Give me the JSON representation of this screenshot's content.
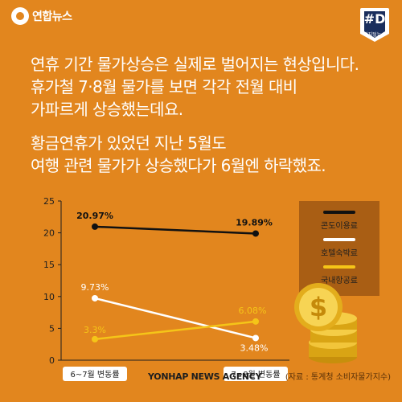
{
  "header": {
    "brand": "연합뉴스",
    "badge_title": "#D",
    "badge_sub": "디지털뉴스"
  },
  "intro": {
    "lines": [
      "연휴 기간 물가상승은 실제로 벌어지는 현상입니다.",
      "휴가철 7·8월 물가를 보면 각각 전월 대비",
      "가파르게 상승했는데요."
    ]
  },
  "detail": {
    "lines": [
      "황금연휴가 있었던 지난 5월도",
      "여행 관련 물가가 상승했다가 6월엔 하락했죠."
    ]
  },
  "colors": {
    "background": "#e2861e",
    "series_black": "#111111",
    "series_white": "#ffffff",
    "series_yellow": "#f5c518",
    "legend_box": "#a95e14"
  },
  "chart_data": {
    "type": "line",
    "categories": [
      "6~7월 변동률",
      "7~8월 변동률"
    ],
    "series": [
      {
        "name": "콘도이용료",
        "values": [
          20.97,
          19.89
        ],
        "labels": [
          "20.97%",
          "19.89%"
        ],
        "color": "#111111"
      },
      {
        "name": "호텔숙박료",
        "values": [
          9.73,
          3.48
        ],
        "labels": [
          "9.73%",
          "3.48%"
        ],
        "color": "#ffffff"
      },
      {
        "name": "국내항공료",
        "values": [
          3.3,
          6.08
        ],
        "labels": [
          "3.3%",
          "6.08%"
        ],
        "color": "#f5c518"
      }
    ],
    "ylim": [
      0,
      25
    ],
    "yticks": [
      0,
      5,
      10,
      15,
      20,
      25
    ],
    "xlabel": "",
    "ylabel": "",
    "legend_position": "right"
  },
  "footer": {
    "agency": "YONHAP NEWS AGENCY",
    "source": "(자료 : 통계청 소비자물가지수)"
  }
}
